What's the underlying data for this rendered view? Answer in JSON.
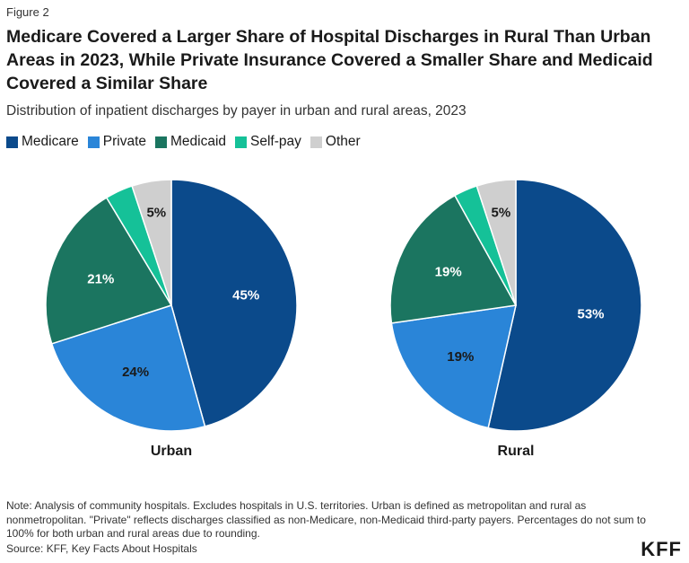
{
  "figure_label": "Figure 2",
  "title": "Medicare Covered a Larger Share of Hospital Discharges in Rural Than Urban Areas in 2023, While Private Insurance Covered a Smaller Share and Medicaid Covered a Similar Share",
  "subtitle": "Distribution of inpatient discharges by payer in urban and rural areas, 2023",
  "colors": {
    "Medicare": "#0b4a8b",
    "Private": "#2a85d8",
    "Medicaid": "#1b7560",
    "Self-pay": "#15c198",
    "Other": "#cfcfcf"
  },
  "chart_data": [
    {
      "type": "pie",
      "title": "Urban",
      "legend": [
        "Medicare",
        "Private",
        "Medicaid",
        "Self-pay",
        "Other"
      ],
      "slices": [
        {
          "name": "Medicare",
          "value": 45,
          "label": "45%"
        },
        {
          "name": "Private",
          "value": 24,
          "label": "24%"
        },
        {
          "name": "Medicaid",
          "value": 21,
          "label": "21%"
        },
        {
          "name": "Self-pay",
          "value": 3.5,
          "label": ""
        },
        {
          "name": "Other",
          "value": 5,
          "label": "5%"
        }
      ]
    },
    {
      "type": "pie",
      "title": "Rural",
      "legend": [
        "Medicare",
        "Private",
        "Medicaid",
        "Self-pay",
        "Other"
      ],
      "slices": [
        {
          "name": "Medicare",
          "value": 53,
          "label": "53%"
        },
        {
          "name": "Private",
          "value": 19,
          "label": "19%"
        },
        {
          "name": "Medicaid",
          "value": 19,
          "label": "19%"
        },
        {
          "name": "Self-pay",
          "value": 3,
          "label": ""
        },
        {
          "name": "Other",
          "value": 5,
          "label": "5%"
        }
      ]
    }
  ],
  "note": "Note: Analysis of community hospitals. Excludes hospitals in U.S. territories. Urban is defined as metropolitan and rural as nonmetropolitan. \"Private\" reflects discharges classified as non-Medicare, non-Medicaid third-party payers. Percentages do not sum to 100% for both urban and rural areas due to rounding.",
  "source": "Source: KFF, Key Facts About Hospitals",
  "logo": "KFF"
}
